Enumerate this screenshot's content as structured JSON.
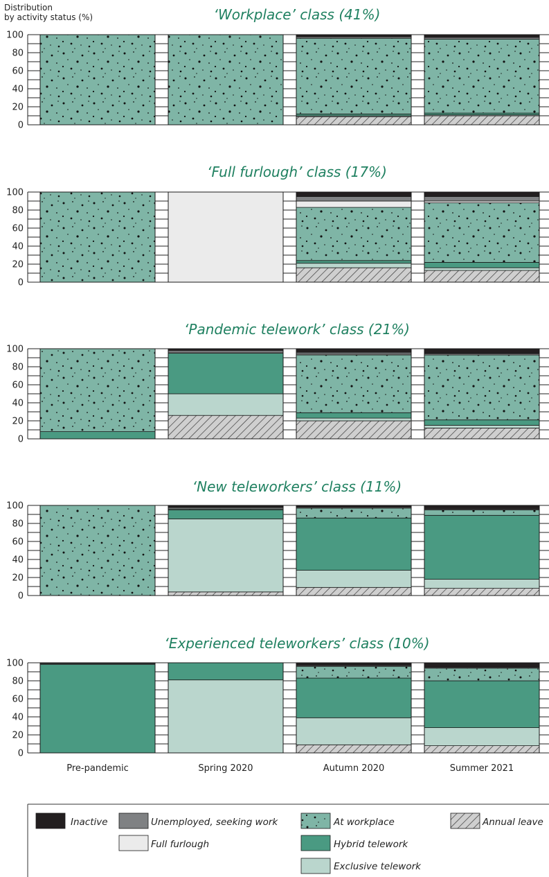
{
  "chart_data": {
    "type": "bar",
    "stacked": true,
    "ylabel": "Distribution\nby activity status (%)",
    "ylim": [
      0,
      100
    ],
    "yticks": [
      0,
      20,
      40,
      60,
      80,
      100
    ],
    "categories": [
      "Pre-pandemic",
      "Spring 2020",
      "Autumn 2020",
      "Summer 2021"
    ],
    "stack_order": [
      "Annual leave",
      "Exclusive telework",
      "Hybrid telework",
      "At workplace",
      "Full furlough",
      "Unemployed, seeking work",
      "Inactive"
    ],
    "colors": {
      "Inactive": "#231f20",
      "Unemployed, seeking work": "#7f8183",
      "Full furlough": "#ebebeb",
      "At workplace": "#7fb5a6",
      "Hybrid telework": "#4a9a82",
      "Exclusive telework": "#bad6cd",
      "Annual leave": "#c8c8c8"
    },
    "panels": [
      {
        "title": "‘Workplace’ class (41%)",
        "bars": [
          {
            "Annual leave": 0,
            "Exclusive telework": 0,
            "Hybrid telework": 0,
            "At workplace": 100,
            "Full furlough": 0,
            "Unemployed, seeking work": 0,
            "Inactive": 0
          },
          {
            "Annual leave": 0,
            "Exclusive telework": 0,
            "Hybrid telework": 0,
            "At workplace": 100,
            "Full furlough": 0,
            "Unemployed, seeking work": 0,
            "Inactive": 0
          },
          {
            "Annual leave": 9,
            "Exclusive telework": 1,
            "Hybrid telework": 2,
            "At workplace": 84,
            "Full furlough": 1,
            "Unemployed, seeking work": 1,
            "Inactive": 2
          },
          {
            "Annual leave": 10,
            "Exclusive telework": 1,
            "Hybrid telework": 2,
            "At workplace": 82,
            "Full furlough": 0,
            "Unemployed, seeking work": 2,
            "Inactive": 3
          }
        ]
      },
      {
        "title": "‘Full furlough’ class (17%)",
        "bars": [
          {
            "Annual leave": 0,
            "Exclusive telework": 0,
            "Hybrid telework": 0,
            "At workplace": 100,
            "Full furlough": 0,
            "Unemployed, seeking work": 0,
            "Inactive": 0
          },
          {
            "Annual leave": 0,
            "Exclusive telework": 0,
            "Hybrid telework": 0,
            "At workplace": 0,
            "Full furlough": 100,
            "Unemployed, seeking work": 0,
            "Inactive": 0
          },
          {
            "Annual leave": 16,
            "Exclusive telework": 5,
            "Hybrid telework": 3,
            "At workplace": 59,
            "Full furlough": 7,
            "Unemployed, seeking work": 5,
            "Inactive": 5
          },
          {
            "Annual leave": 13,
            "Exclusive telework": 3,
            "Hybrid telework": 6,
            "At workplace": 66,
            "Full furlough": 2,
            "Unemployed, seeking work": 5,
            "Inactive": 5
          }
        ]
      },
      {
        "title": "‘Pandemic telework’ class (21%)",
        "bars": [
          {
            "Annual leave": 0,
            "Exclusive telework": 0,
            "Hybrid telework": 8,
            "At workplace": 92,
            "Full furlough": 0,
            "Unemployed, seeking work": 0,
            "Inactive": 0
          },
          {
            "Annual leave": 26,
            "Exclusive telework": 24,
            "Hybrid telework": 45,
            "At workplace": 0,
            "Full furlough": 1,
            "Unemployed, seeking work": 2,
            "Inactive": 2
          },
          {
            "Annual leave": 20,
            "Exclusive telework": 3,
            "Hybrid telework": 6,
            "At workplace": 64,
            "Full furlough": 1,
            "Unemployed, seeking work": 2,
            "Inactive": 4
          },
          {
            "Annual leave": 12,
            "Exclusive telework": 3,
            "Hybrid telework": 6,
            "At workplace": 72,
            "Full furlough": 1,
            "Unemployed, seeking work": 1,
            "Inactive": 5
          }
        ]
      },
      {
        "title": "‘New teleworkers’ class (11%)",
        "bars": [
          {
            "Annual leave": 0,
            "Exclusive telework": 0,
            "Hybrid telework": 0,
            "At workplace": 100,
            "Full furlough": 0,
            "Unemployed, seeking work": 0,
            "Inactive": 0
          },
          {
            "Annual leave": 4,
            "Exclusive telework": 81,
            "Hybrid telework": 10,
            "At workplace": 1,
            "Full furlough": 1,
            "Unemployed, seeking work": 1,
            "Inactive": 2
          },
          {
            "Annual leave": 9,
            "Exclusive telework": 19,
            "Hybrid telework": 58,
            "At workplace": 11,
            "Full furlough": 0,
            "Unemployed, seeking work": 1,
            "Inactive": 2
          },
          {
            "Annual leave": 8,
            "Exclusive telework": 10,
            "Hybrid telework": 71,
            "At workplace": 6,
            "Full furlough": 0,
            "Unemployed, seeking work": 1,
            "Inactive": 4
          }
        ]
      },
      {
        "title": "‘Experienced teleworkers’ class (10%)",
        "bars": [
          {
            "Annual leave": 0,
            "Exclusive telework": 0,
            "Hybrid telework": 98,
            "At workplace": 1,
            "Full furlough": 0,
            "Unemployed, seeking work": 0,
            "Inactive": 1
          },
          {
            "Annual leave": 0,
            "Exclusive telework": 81,
            "Hybrid telework": 19,
            "At workplace": 0,
            "Full furlough": 0,
            "Unemployed, seeking work": 0,
            "Inactive": 0
          },
          {
            "Annual leave": 9,
            "Exclusive telework": 30,
            "Hybrid telework": 44,
            "At workplace": 13,
            "Full furlough": 0,
            "Unemployed, seeking work": 1,
            "Inactive": 3
          },
          {
            "Annual leave": 8,
            "Exclusive telework": 20,
            "Hybrid telework": 52,
            "At workplace": 14,
            "Full furlough": 0,
            "Unemployed, seeking work": 1,
            "Inactive": 5
          }
        ]
      }
    ],
    "legend": [
      {
        "label": "Inactive",
        "key": "Inactive"
      },
      {
        "label": "Unemployed, seeking work",
        "key": "Unemployed, seeking work"
      },
      {
        "label": "At workplace",
        "key": "At workplace"
      },
      {
        "label": "Annual leave",
        "key": "Annual leave"
      },
      {
        "label": "Full furlough",
        "key": "Full furlough"
      },
      {
        "label": "Hybrid telework",
        "key": "Hybrid telework"
      },
      {
        "label": "Exclusive telework",
        "key": "Exclusive telework"
      }
    ]
  }
}
